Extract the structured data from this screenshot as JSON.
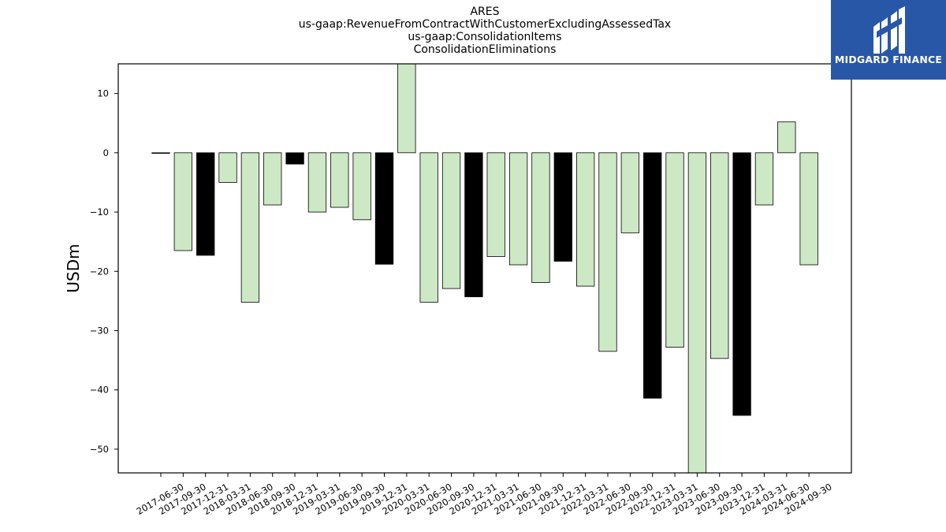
{
  "chart_data": {
    "type": "bar",
    "title": [
      "ARES",
      "us-gaap:RevenueFromContractWithCustomerExcludingAssessedTax",
      "us-gaap:ConsolidationItems",
      "ConsolidationEliminations"
    ],
    "ylabel": "USDm",
    "xlabel": "",
    "ylim": [
      -54,
      15
    ],
    "yticks": [
      10,
      0,
      -10,
      -20,
      -30,
      -40,
      -50
    ],
    "ytick_labels": [
      "10",
      "0",
      "−10",
      "−20",
      "−30",
      "−40",
      "−50"
    ],
    "categories": [
      "2017-06-30",
      "2017-09-30",
      "2017-12-31",
      "2018-03-31",
      "2018-06-30",
      "2018-09-30",
      "2018-12-31",
      "2019-03-31",
      "2019-06-30",
      "2019-09-30",
      "2019-12-31",
      "2020-03-31",
      "2020-06-30",
      "2020-09-30",
      "2020-12-31",
      "2021-03-31",
      "2021-06-30",
      "2021-09-30",
      "2021-12-31",
      "2022-03-31",
      "2022-06-30",
      "2022-09-30",
      "2022-12-31",
      "2023-03-31",
      "2023-06-30",
      "2023-09-30",
      "2023-12-31",
      "2024-03-31",
      "2024-06-30",
      "2024-09-30"
    ],
    "values": [
      -0.1,
      -16.5,
      -17.3,
      -5.0,
      -25.2,
      -8.8,
      -1.9,
      -10.0,
      -9.2,
      -11.3,
      -18.8,
      18.0,
      -25.2,
      -22.9,
      -24.3,
      -17.5,
      -18.9,
      -21.9,
      -18.3,
      -22.5,
      -33.5,
      -13.5,
      -41.4,
      -32.8,
      -57.0,
      -34.7,
      -44.3,
      -8.8,
      5.2,
      -18.9
    ],
    "bar_colors": [
      "#000000",
      "#cde8c5",
      "#000000",
      "#cde8c5",
      "#cde8c5",
      "#cde8c5",
      "#000000",
      "#cde8c5",
      "#cde8c5",
      "#cde8c5",
      "#000000",
      "#cde8c5",
      "#cde8c5",
      "#cde8c5",
      "#000000",
      "#cde8c5",
      "#cde8c5",
      "#cde8c5",
      "#000000",
      "#cde8c5",
      "#cde8c5",
      "#cde8c5",
      "#000000",
      "#cde8c5",
      "#cde8c5",
      "#cde8c5",
      "#000000",
      "#cde8c5",
      "#cde8c5",
      "#cde8c5"
    ],
    "colors": {
      "annual": "#000000",
      "quarterly": "#cde8c5",
      "edge": "#000000"
    },
    "grid": false
  },
  "logo": {
    "text": "MIDGARD FINANCE",
    "background": "#2957a8",
    "color": "#ffffff"
  }
}
